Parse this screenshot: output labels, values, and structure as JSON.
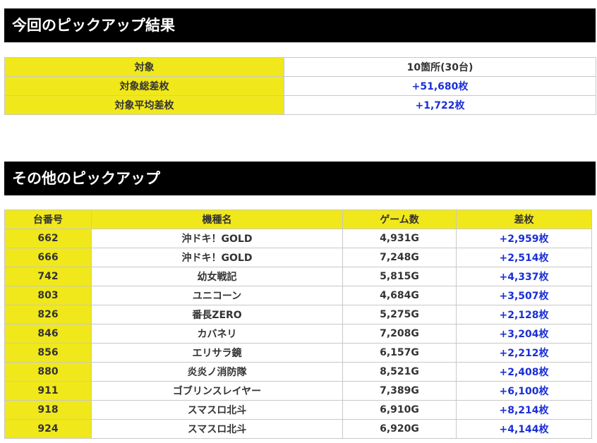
{
  "pickup_result": {
    "title": "今回のピックアップ結果",
    "rows": [
      {
        "label": "対象",
        "value": "10箇所(30台)"
      },
      {
        "label": "対象総差枚",
        "value": "+51,680枚"
      },
      {
        "label": "対象平均差枚",
        "value": "+1,722枚"
      }
    ]
  },
  "other_pickup": {
    "title": "その他のピックアップ",
    "headers": [
      "台番号",
      "機種名",
      "ゲーム数",
      "差枚"
    ],
    "rows": [
      {
        "no": "662",
        "machine": "沖ドキ！GOLD",
        "games": "4,931G",
        "diff": "+2,959枚"
      },
      {
        "no": "666",
        "machine": "沖ドキ！GOLD",
        "games": "7,248G",
        "diff": "+2,514枚"
      },
      {
        "no": "742",
        "machine": "幼女戦記",
        "games": "5,815G",
        "diff": "+4,337枚"
      },
      {
        "no": "803",
        "machine": "ユニコーン",
        "games": "4,684G",
        "diff": "+3,507枚"
      },
      {
        "no": "826",
        "machine": "番長ZERO",
        "games": "5,275G",
        "diff": "+2,128枚"
      },
      {
        "no": "846",
        "machine": "カバネリ",
        "games": "7,208G",
        "diff": "+3,204枚"
      },
      {
        "no": "856",
        "machine": "エリサラ鏡",
        "games": "6,157G",
        "diff": "+2,212枚"
      },
      {
        "no": "880",
        "machine": "炎炎ノ消防隊",
        "games": "8,521G",
        "diff": "+2,408枚"
      },
      {
        "no": "911",
        "machine": "ゴブリンスレイヤー",
        "games": "7,389G",
        "diff": "+6,100枚"
      },
      {
        "no": "918",
        "machine": "スマスロ北斗",
        "games": "6,910G",
        "diff": "+8,214枚"
      },
      {
        "no": "924",
        "machine": "スマスロ北斗",
        "games": "6,920G",
        "diff": "+4,144枚"
      }
    ]
  },
  "colors": {
    "header_bg": "#000000",
    "label_bg": "#f0e81a",
    "positive_value": "#1a2fd6"
  }
}
